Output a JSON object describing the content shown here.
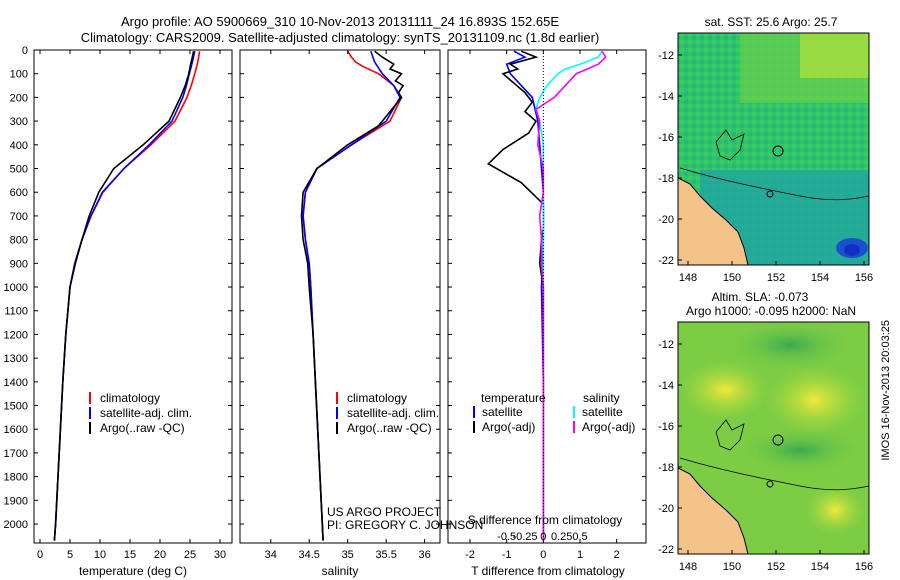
{
  "header": {
    "line1": "Argo profile: AO 5900669_310 10-Nov-2013 20131111_24 16.893S 152.65E",
    "line2": "Climatology: CARS2009. Satellite-adjusted climatology: synTS_20131109.nc (1.8d earlier)"
  },
  "colors": {
    "climatology": "#ff0000",
    "satellite": "#0000ff",
    "argo": "#000000",
    "sat_sal": "#00ffff",
    "argo_sal": "#ff00ff",
    "land": "#f4c38a"
  },
  "depth_axis": {
    "min": 0,
    "max": 2080,
    "ticks": [
      0,
      100,
      200,
      300,
      400,
      500,
      600,
      700,
      800,
      900,
      1000,
      1100,
      1200,
      1300,
      1400,
      1500,
      1600,
      1700,
      1800,
      1900,
      2000
    ]
  },
  "chart_data": [
    {
      "type": "line",
      "name": "temperature-panel",
      "xlabel": "temperature (deg C)",
      "xlim": [
        -1,
        32
      ],
      "xticks": [
        0,
        5,
        10,
        15,
        20,
        25,
        30
      ],
      "ylim": [
        2080,
        0
      ],
      "legend": [
        "climatology",
        "satellite-adj. clim.",
        "Argo(..raw -QC)"
      ],
      "series": [
        {
          "name": "climatology",
          "color": "#ff0000",
          "points": [
            [
              26.6,
              5
            ],
            [
              26.3,
              50
            ],
            [
              25.8,
              100
            ],
            [
              25.2,
              150
            ],
            [
              24.5,
              200
            ],
            [
              22.5,
              300
            ],
            [
              18.5,
              400
            ],
            [
              14,
              500
            ],
            [
              10.5,
              600
            ],
            [
              8.5,
              700
            ],
            [
              7,
              800
            ],
            [
              5.8,
              900
            ],
            [
              5,
              1000
            ],
            [
              4.3,
              1200
            ],
            [
              3.8,
              1400
            ],
            [
              3.4,
              1600
            ],
            [
              3.0,
              1800
            ],
            [
              2.6,
              2000
            ],
            [
              2.4,
              2070
            ]
          ]
        },
        {
          "name": "satellite",
          "color": "#0000ff",
          "points": [
            [
              25.8,
              5
            ],
            [
              25.4,
              50
            ],
            [
              24.9,
              100
            ],
            [
              24.4,
              150
            ],
            [
              23.8,
              200
            ],
            [
              22,
              300
            ],
            [
              18.2,
              400
            ],
            [
              14,
              500
            ],
            [
              10.4,
              600
            ],
            [
              8.5,
              700
            ],
            [
              7,
              800
            ],
            [
              5.8,
              900
            ],
            [
              5,
              1000
            ],
            [
              4.3,
              1200
            ],
            [
              3.8,
              1400
            ],
            [
              3.4,
              1600
            ],
            [
              3.0,
              1800
            ],
            [
              2.6,
              2000
            ],
            [
              2.4,
              2070
            ]
          ]
        },
        {
          "name": "argo",
          "color": "#000000",
          "points": [
            [
              25.6,
              5
            ],
            [
              25.3,
              40
            ],
            [
              25.1,
              60
            ],
            [
              24.8,
              100
            ],
            [
              24.2,
              150
            ],
            [
              23.4,
              200
            ],
            [
              21.5,
              300
            ],
            [
              17.2,
              400
            ],
            [
              12.3,
              500
            ],
            [
              9.8,
              600
            ],
            [
              8.2,
              700
            ],
            [
              7,
              800
            ],
            [
              5.9,
              900
            ],
            [
              5,
              1000
            ],
            [
              4.3,
              1200
            ],
            [
              3.8,
              1400
            ],
            [
              3.4,
              1600
            ],
            [
              3.0,
              1800
            ],
            [
              2.6,
              2000
            ],
            [
              2.4,
              2070
            ]
          ]
        }
      ]
    },
    {
      "type": "line",
      "name": "salinity-panel",
      "xlabel": "salinity",
      "xlim": [
        33.6,
        36.2
      ],
      "xticks": [
        34,
        34.5,
        35,
        35.5,
        36
      ],
      "ylim": [
        2080,
        0
      ],
      "legend": [
        "climatology",
        "satellite-adj. clim.",
        "Argo(..raw -QC)"
      ],
      "series": [
        {
          "name": "climatology",
          "color": "#ff0000",
          "points": [
            [
              35.0,
              5
            ],
            [
              35.05,
              30
            ],
            [
              35.1,
              50
            ],
            [
              35.2,
              70
            ],
            [
              35.4,
              100
            ],
            [
              35.6,
              150
            ],
            [
              35.7,
              200
            ],
            [
              35.55,
              300
            ],
            [
              35.05,
              400
            ],
            [
              34.6,
              500
            ],
            [
              34.45,
              600
            ],
            [
              34.42,
              700
            ],
            [
              34.45,
              800
            ],
            [
              34.5,
              900
            ],
            [
              34.52,
              1000
            ],
            [
              34.55,
              1200
            ],
            [
              34.58,
              1400
            ],
            [
              34.61,
              1600
            ],
            [
              34.64,
              1800
            ],
            [
              34.67,
              2000
            ],
            [
              34.68,
              2070
            ]
          ]
        },
        {
          "name": "satellite",
          "color": "#0000ff",
          "points": [
            [
              35.3,
              5
            ],
            [
              35.35,
              50
            ],
            [
              35.45,
              100
            ],
            [
              35.6,
              150
            ],
            [
              35.68,
              200
            ],
            [
              35.5,
              300
            ],
            [
              35.05,
              400
            ],
            [
              34.6,
              500
            ],
            [
              34.45,
              600
            ],
            [
              34.42,
              700
            ],
            [
              34.45,
              800
            ],
            [
              34.5,
              900
            ],
            [
              34.52,
              1000
            ],
            [
              34.55,
              1200
            ],
            [
              34.58,
              1400
            ],
            [
              34.61,
              1600
            ],
            [
              34.64,
              1800
            ],
            [
              34.67,
              2000
            ],
            [
              34.68,
              2070
            ]
          ]
        },
        {
          "name": "argo",
          "color": "#000000",
          "points": [
            [
              35.35,
              5
            ],
            [
              35.45,
              30
            ],
            [
              35.6,
              60
            ],
            [
              35.55,
              80
            ],
            [
              35.7,
              100
            ],
            [
              35.62,
              130
            ],
            [
              35.72,
              150
            ],
            [
              35.66,
              180
            ],
            [
              35.7,
              200
            ],
            [
              35.55,
              260
            ],
            [
              35.4,
              320
            ],
            [
              35.0,
              400
            ],
            [
              34.6,
              500
            ],
            [
              34.42,
              600
            ],
            [
              34.4,
              700
            ],
            [
              34.42,
              800
            ],
            [
              34.48,
              900
            ],
            [
              34.5,
              1000
            ],
            [
              34.55,
              1200
            ],
            [
              34.58,
              1400
            ],
            [
              34.61,
              1600
            ],
            [
              34.64,
              1800
            ],
            [
              34.67,
              2000
            ],
            [
              34.68,
              2070
            ]
          ]
        }
      ]
    },
    {
      "type": "line",
      "name": "difference-panel",
      "xlabel": "T difference from climatology",
      "xlabel_top": "S difference from climatology",
      "xlim": [
        -2.6,
        2.8
      ],
      "xticks": [
        -2,
        -1,
        0,
        1,
        2
      ],
      "xticks_salinity": [
        -0.5,
        -0.25,
        0,
        0.25,
        0.5
      ],
      "ylim": [
        2080,
        0
      ],
      "legend": {
        "temperature_title": "temperature",
        "salinity_title": "salinity",
        "satellite": "satellite",
        "argo": "Argo(-adj)"
      },
      "series": [
        {
          "name": "temperature-satellite",
          "color": "#0000ff",
          "points": [
            [
              -0.8,
              5
            ],
            [
              -0.5,
              30
            ],
            [
              -1.0,
              60
            ],
            [
              -0.9,
              100
            ],
            [
              -0.6,
              150
            ],
            [
              -0.3,
              200
            ],
            [
              -0.15,
              300
            ],
            [
              -0.1,
              400
            ],
            [
              -0.05,
              500
            ],
            [
              0,
              600
            ],
            [
              0,
              800
            ],
            [
              -0.05,
              1000
            ],
            [
              0,
              1400
            ],
            [
              0,
              1800
            ],
            [
              0,
              2070
            ]
          ]
        },
        {
          "name": "temperature-argo",
          "color": "#000000",
          "points": [
            [
              -0.6,
              5
            ],
            [
              -0.2,
              30
            ],
            [
              -0.9,
              60
            ],
            [
              -0.7,
              80
            ],
            [
              -1.1,
              100
            ],
            [
              -0.8,
              140
            ],
            [
              -0.5,
              180
            ],
            [
              -0.3,
              220
            ],
            [
              -0.5,
              260
            ],
            [
              -0.2,
              300
            ],
            [
              -0.4,
              350
            ],
            [
              -1.1,
              420
            ],
            [
              -1.5,
              480
            ],
            [
              -0.6,
              560
            ],
            [
              0,
              650
            ],
            [
              0,
              750
            ],
            [
              -0.05,
              800
            ],
            [
              -0.1,
              900
            ],
            [
              0,
              1000
            ],
            [
              0,
              1500
            ],
            [
              0,
              2070
            ]
          ]
        },
        {
          "name": "salinity-satellite",
          "color": "#00ffff",
          "points": [
            [
              1.6,
              5
            ],
            [
              1.5,
              30
            ],
            [
              1.0,
              60
            ],
            [
              0.6,
              80
            ],
            [
              0.4,
              100
            ],
            [
              0.1,
              150
            ],
            [
              -0.1,
              200
            ],
            [
              -0.2,
              250
            ],
            [
              -0.1,
              300
            ],
            [
              0,
              400
            ],
            [
              0,
              600
            ],
            [
              0,
              800
            ],
            [
              0,
              1000
            ],
            [
              0,
              1500
            ],
            [
              0,
              2070
            ]
          ]
        },
        {
          "name": "salinity-argo",
          "color": "#ff00ff",
          "points": [
            [
              1.6,
              5
            ],
            [
              1.7,
              30
            ],
            [
              1.5,
              60
            ],
            [
              1.2,
              80
            ],
            [
              0.9,
              100
            ],
            [
              0.6,
              150
            ],
            [
              0.3,
              200
            ],
            [
              -0.2,
              250
            ],
            [
              -0.1,
              300
            ],
            [
              -0.15,
              400
            ],
            [
              0,
              500
            ],
            [
              0,
              600
            ],
            [
              -0.1,
              700
            ],
            [
              -0.05,
              800
            ],
            [
              -0.05,
              900
            ],
            [
              0,
              1000
            ],
            [
              0,
              1500
            ],
            [
              0,
              2070
            ]
          ]
        }
      ]
    }
  ],
  "credit": {
    "line1": "US ARGO PROJECT",
    "line2": "PI: GREGORY C. JOHNSON"
  },
  "map_sst": {
    "title": "sat. SST: 25.6 Argo: 25.7",
    "xticks": [
      "148",
      "150",
      "152",
      "154",
      "156"
    ],
    "yticks": [
      "-12",
      "-14",
      "-16",
      "-18",
      "-20",
      "-22"
    ]
  },
  "map_sla": {
    "title1": "Altim. SLA: -0.073",
    "title2": "Argo h1000: -0.095 h2000: NaN",
    "xticks": [
      "148",
      "150",
      "152",
      "154",
      "156"
    ],
    "yticks": [
      "-12",
      "-14",
      "-16",
      "-18",
      "-20",
      "-22"
    ]
  },
  "stamp": "IMOS 16-Nov-2013 20:03:25"
}
